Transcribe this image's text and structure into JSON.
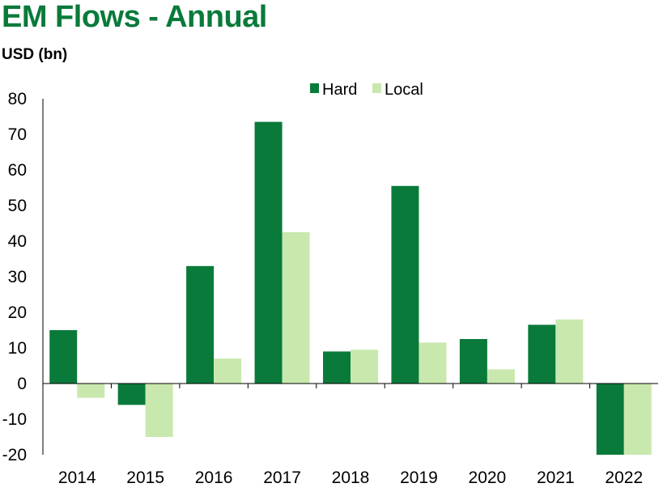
{
  "title": "EM Flows - Annual",
  "unit_label": "USD (bn)",
  "colors": {
    "title": "#0a7a3a",
    "hard": "#0a7a3a",
    "local": "#c9e8ae",
    "axis": "#000000"
  },
  "chart_data": {
    "type": "bar",
    "title": "EM Flows - Annual",
    "ylabel": "USD (bn)",
    "xlabel": "",
    "categories": [
      "2014",
      "2015",
      "2016",
      "2017",
      "2018",
      "2019",
      "2020",
      "2021",
      "2022"
    ],
    "series": [
      {
        "name": "Hard",
        "values": [
          15,
          -6,
          33,
          73.5,
          9,
          55.5,
          12.5,
          16.5,
          -20
        ]
      },
      {
        "name": "Local",
        "values": [
          -4,
          -15,
          7,
          42.5,
          9.5,
          11.5,
          4,
          18,
          -20
        ]
      }
    ],
    "ylim": [
      -20,
      80
    ],
    "yticks": [
      -20,
      -10,
      0,
      10,
      20,
      30,
      40,
      50,
      60,
      70,
      80
    ],
    "grid": false,
    "legend": "top-center"
  }
}
